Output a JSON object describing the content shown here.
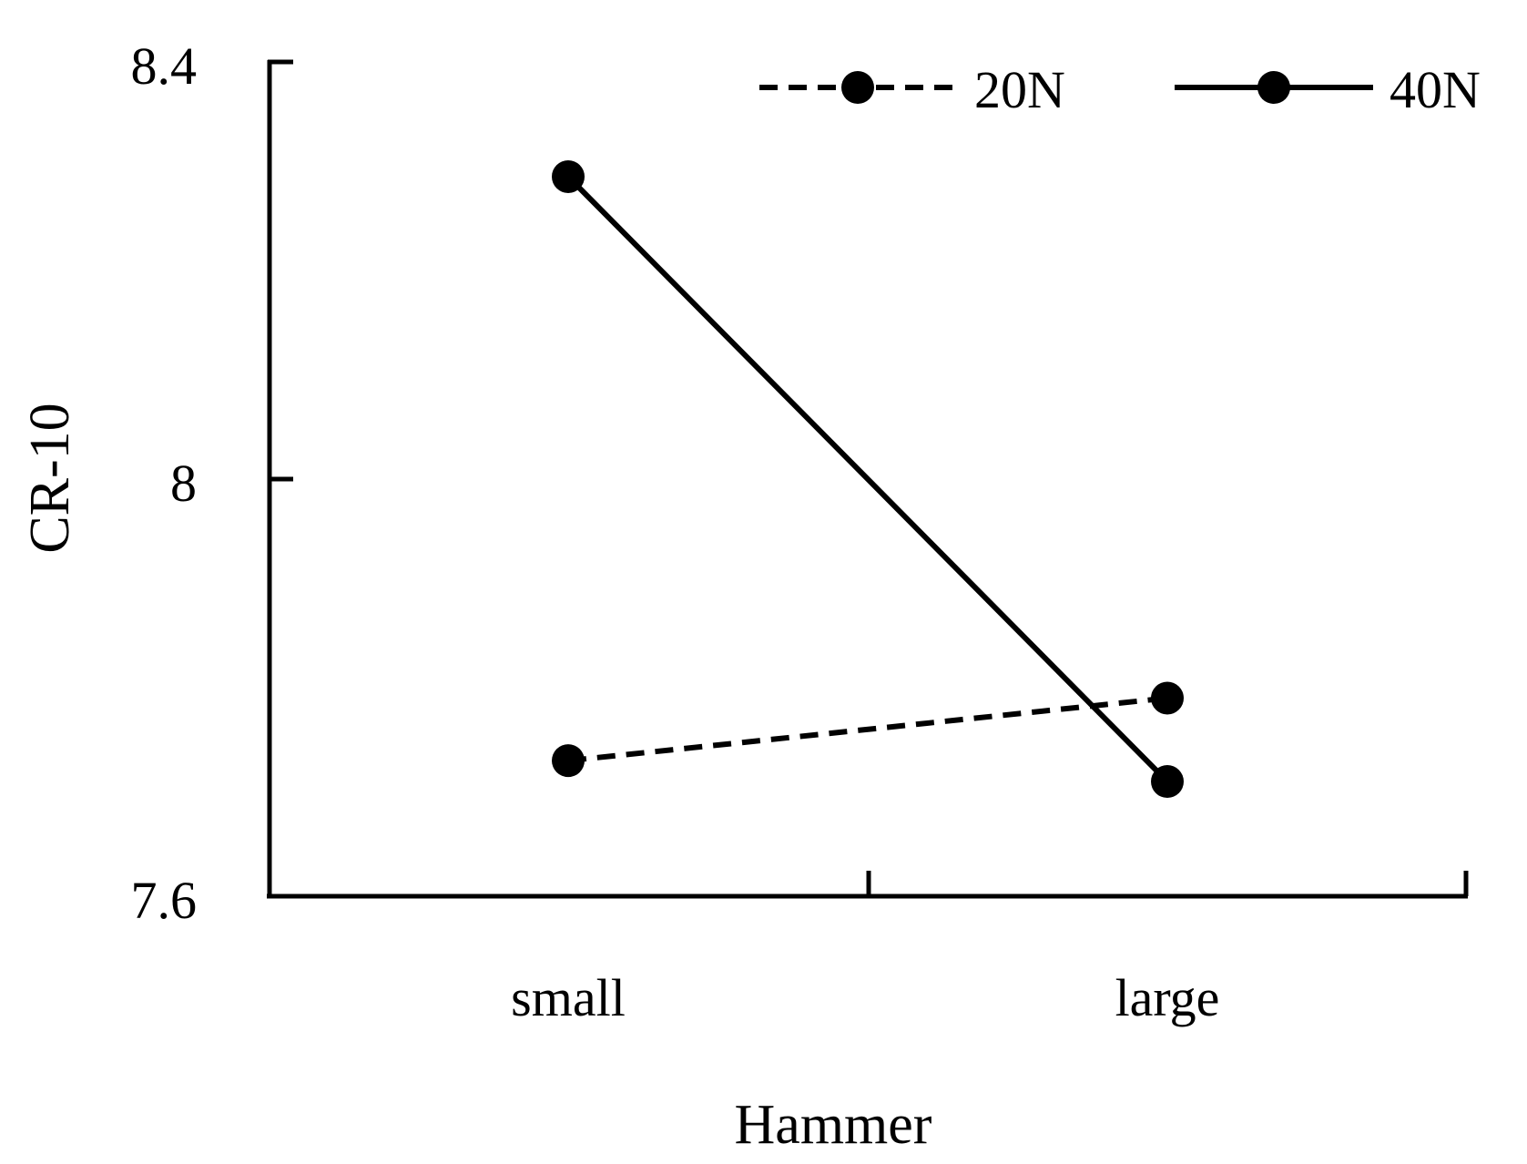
{
  "chart_data": {
    "type": "line",
    "title": "",
    "xlabel": "Hammer",
    "ylabel": "CR-10",
    "categories": [
      "small",
      "large"
    ],
    "ylim": [
      7.6,
      8.4
    ],
    "yticks": [
      "7.6",
      "8",
      "8.4"
    ],
    "grid": false,
    "legend_position": "top-right",
    "series": [
      {
        "name": "20N",
        "values": [
          7.73,
          7.79
        ],
        "line_style": "dashed",
        "marker": "filled-circle",
        "color": "#000000"
      },
      {
        "name": "40N",
        "values": [
          8.29,
          7.71
        ],
        "line_style": "solid",
        "marker": "filled-circle",
        "color": "#000000"
      }
    ]
  }
}
